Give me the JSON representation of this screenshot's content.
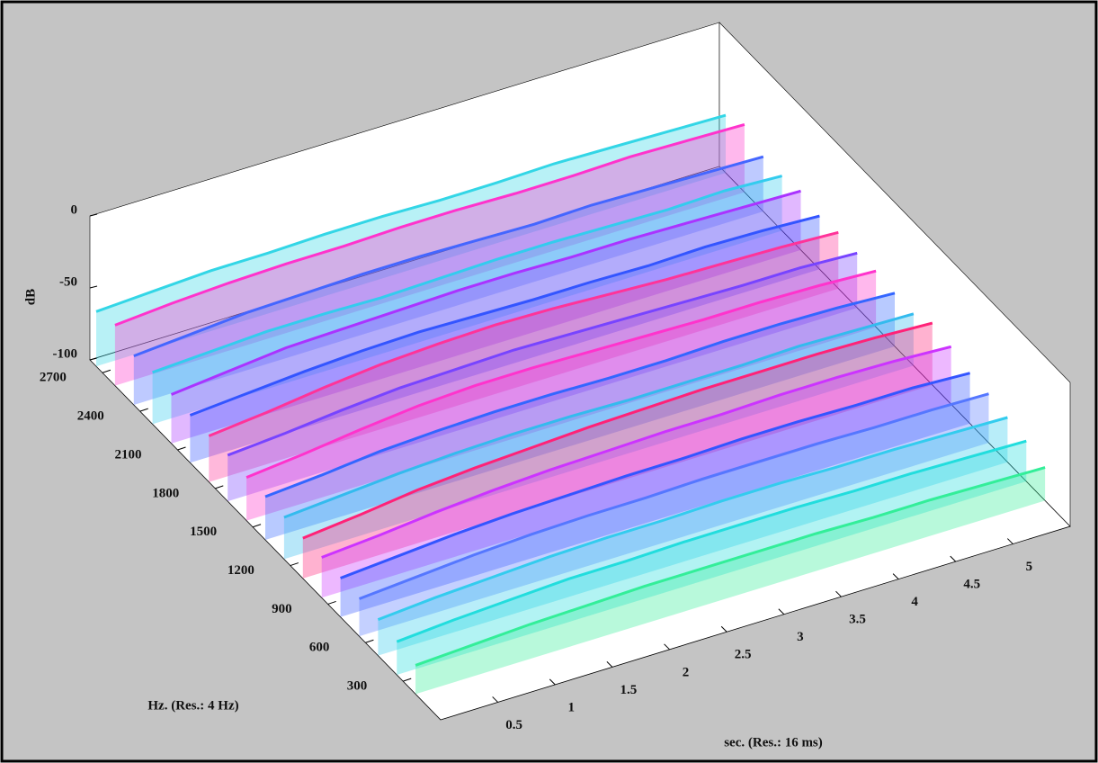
{
  "chart_data": {
    "type": "waterfall",
    "zlabel": "dB",
    "ylabel": "Hz. (Res.: 4 Hz)",
    "xlabel": "sec. (Res.: 16 ms)",
    "x": [
      0,
      0.5,
      1,
      1.5,
      2,
      2.5,
      3,
      3.5,
      4,
      4.5,
      5,
      5.5
    ],
    "xlim": [
      0,
      5.5
    ],
    "xticks": [
      0.5,
      1,
      1.5,
      2,
      2.5,
      3,
      3.5,
      4,
      4.5,
      5
    ],
    "ylim": [
      0,
      2800
    ],
    "yticks": [
      300,
      600,
      900,
      1200,
      1500,
      1800,
      2100,
      2400,
      2700
    ],
    "zlim": [
      -100,
      0
    ],
    "zticks": [
      0,
      -50,
      -100
    ],
    "series": [
      {
        "y": 2750,
        "color": "#33d6e6",
        "values": [
          -62,
          -60,
          -58,
          -58,
          -57,
          -57,
          -58,
          -58,
          -57,
          -58,
          -59,
          -60
        ]
      },
      {
        "y": 2600,
        "color": "#ff33cc",
        "values": [
          -58,
          -55,
          -53,
          -52,
          -52,
          -51,
          -51,
          -52,
          -52,
          -51,
          -52,
          -53
        ]
      },
      {
        "y": 2450,
        "color": "#4466ff",
        "values": [
          -66,
          -63,
          -60,
          -59,
          -58,
          -58,
          -59,
          -60,
          -59,
          -60,
          -61,
          -62
        ]
      },
      {
        "y": 2300,
        "color": "#33ccee",
        "values": [
          -64,
          -62,
          -60,
          -60,
          -61,
          -60,
          -59,
          -59,
          -60,
          -61,
          -60,
          -62
        ]
      },
      {
        "y": 2150,
        "color": "#aa33ff",
        "values": [
          -66,
          -62,
          -58,
          -57,
          -56,
          -55,
          -55,
          -56,
          -56,
          -57,
          -58,
          -59
        ]
      },
      {
        "y": 2000,
        "color": "#3355ff",
        "values": [
          -67,
          -64,
          -61,
          -59,
          -58,
          -59,
          -60,
          -60,
          -61,
          -60,
          -61,
          -63
        ]
      },
      {
        "y": 1850,
        "color": "#ff3399",
        "values": [
          -68,
          -64,
          -59,
          -55,
          -53,
          -52,
          -53,
          -55,
          -57,
          -58,
          -59,
          -61
        ]
      },
      {
        "y": 1700,
        "color": "#7744ff",
        "values": [
          -68,
          -65,
          -61,
          -58,
          -57,
          -56,
          -57,
          -58,
          -59,
          -60,
          -60,
          -62
        ]
      },
      {
        "y": 1550,
        "color": "#ff33cc",
        "values": [
          -70,
          -66,
          -61,
          -57,
          -55,
          -55,
          -56,
          -57,
          -58,
          -58,
          -59,
          -61
        ]
      },
      {
        "y": 1400,
        "color": "#3366ff",
        "values": [
          -70,
          -67,
          -63,
          -61,
          -60,
          -60,
          -61,
          -61,
          -60,
          -60,
          -61,
          -63
        ]
      },
      {
        "y": 1250,
        "color": "#33bbee",
        "values": [
          -71,
          -68,
          -65,
          -63,
          -62,
          -62,
          -63,
          -63,
          -63,
          -62,
          -63,
          -64
        ]
      },
      {
        "y": 1100,
        "color": "#ff2277",
        "values": [
          -72,
          -68,
          -63,
          -60,
          -58,
          -56,
          -55,
          -54,
          -54,
          -54,
          -55,
          -57
        ]
      },
      {
        "y": 950,
        "color": "#cc33ff",
        "values": [
          -72,
          -69,
          -65,
          -62,
          -60,
          -59,
          -58,
          -58,
          -57,
          -57,
          -58,
          -60
        ]
      },
      {
        "y": 800,
        "color": "#3355ff",
        "values": [
          -73,
          -70,
          -67,
          -65,
          -64,
          -63,
          -63,
          -62,
          -62,
          -63,
          -63,
          -65
        ]
      },
      {
        "y": 650,
        "color": "#5577ff",
        "values": [
          -74,
          -71,
          -68,
          -66,
          -65,
          -65,
          -64,
          -64,
          -64,
          -65,
          -65,
          -66
        ]
      },
      {
        "y": 500,
        "color": "#33ccee",
        "values": [
          -75,
          -72,
          -70,
          -68,
          -67,
          -67,
          -66,
          -66,
          -67,
          -67,
          -68,
          -69
        ]
      },
      {
        "y": 350,
        "color": "#22dddd",
        "values": [
          -77,
          -74,
          -72,
          -70,
          -70,
          -69,
          -69,
          -69,
          -70,
          -70,
          -71,
          -72
        ]
      },
      {
        "y": 200,
        "color": "#33ee99",
        "values": [
          -80,
          -78,
          -76,
          -75,
          -74,
          -74,
          -74,
          -74,
          -75,
          -75,
          -76,
          -77
        ]
      }
    ]
  }
}
